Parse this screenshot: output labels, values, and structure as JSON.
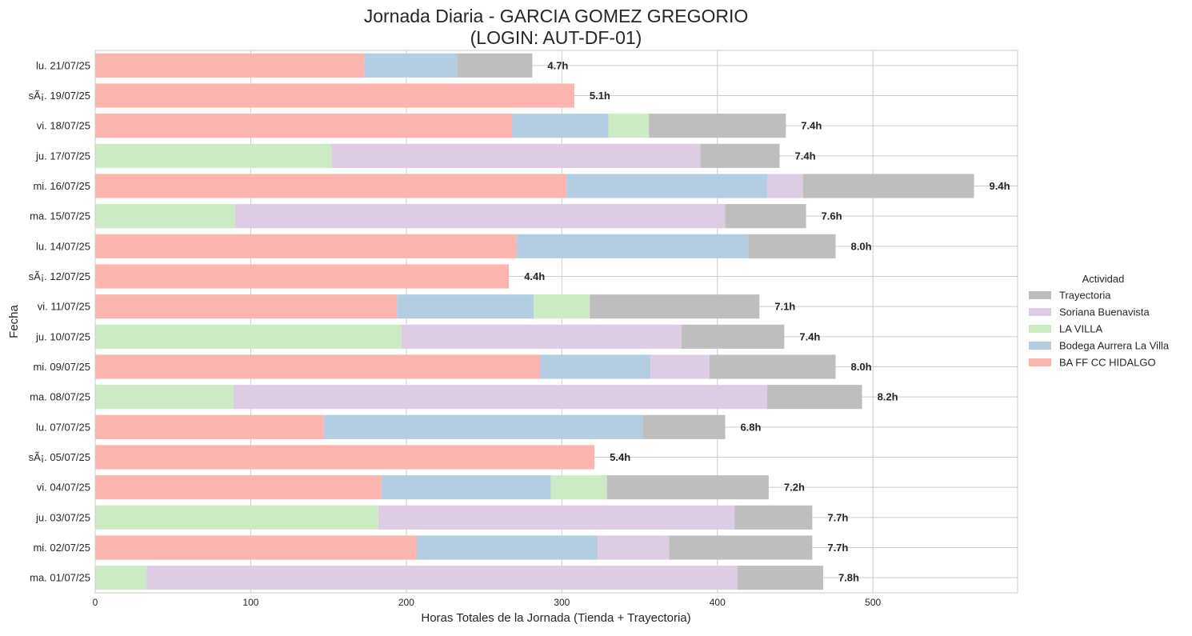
{
  "chart_data": {
    "type": "bar",
    "orientation": "horizontal",
    "stacked": true,
    "title": "Jornada Diaria - GARCIA GOMEZ GREGORIO",
    "subtitle": "(LOGIN: AUT-DF-01)",
    "xlabel": "Horas Totales de la Jornada (Tienda + Trayectoria)",
    "ylabel": "Fecha",
    "xlim": [
      0,
      593
    ],
    "xticks": [
      0,
      100,
      200,
      300,
      400,
      500
    ],
    "grid": true,
    "legend_title": "Actividad",
    "legend_position": "center-right",
    "categories": [
      "lu. 21/07/25",
      "sÃ¡. 19/07/25",
      "vi. 18/07/25",
      "ju. 17/07/25",
      "mi. 16/07/25",
      "ma. 15/07/25",
      "lu. 14/07/25",
      "sÃ¡. 12/07/25",
      "vi. 11/07/25",
      "ju. 10/07/25",
      "mi. 09/07/25",
      "ma. 08/07/25",
      "lu. 07/07/25",
      "sÃ¡. 05/07/25",
      "vi. 04/07/25",
      "ju. 03/07/25",
      "mi. 02/07/25",
      "ma. 01/07/25"
    ],
    "series": [
      {
        "name": "BA FF CC HIDALGO",
        "color": "#fbb4ae",
        "values": [
          173,
          308,
          268,
          0,
          303,
          0,
          271,
          266,
          194,
          0,
          286,
          0,
          147,
          321,
          184,
          0,
          207,
          0
        ]
      },
      {
        "name": "Bodega Aurrera  La Villa",
        "color": "#b3cde3",
        "values": [
          60,
          0,
          62,
          0,
          129,
          0,
          149,
          0,
          88,
          0,
          71,
          0,
          205,
          0,
          109,
          0,
          116,
          0
        ]
      },
      {
        "name": "LA VILLA",
        "color": "#ccebc5",
        "values": [
          0,
          0,
          26,
          152,
          0,
          90,
          0,
          0,
          36,
          197,
          0,
          89,
          0,
          0,
          36,
          182,
          0,
          33
        ]
      },
      {
        "name": "Soriana Buenavista",
        "color": "#decbe4",
        "values": [
          0,
          0,
          0,
          237,
          23,
          315,
          0,
          0,
          0,
          180,
          38,
          343,
          0,
          0,
          0,
          229,
          46,
          380
        ]
      },
      {
        "name": "Trayectoria",
        "color": "#bebebe",
        "values": [
          48,
          0,
          88,
          51,
          110,
          52,
          56,
          0,
          109,
          66,
          81,
          61,
          53,
          0,
          104,
          50,
          92,
          55
        ]
      }
    ],
    "legend_order": [
      "Trayectoria",
      "Soriana Buenavista",
      "LA VILLA",
      "Bodega Aurrera  La Villa",
      "BA FF CC HIDALGO"
    ],
    "totals_labels": [
      "4.7h",
      "5.1h",
      "7.4h",
      "7.4h",
      "9.4h",
      "7.6h",
      "8.0h",
      "4.4h",
      "7.1h",
      "7.4h",
      "8.0h",
      "8.2h",
      "6.8h",
      "5.4h",
      "7.2h",
      "7.7h",
      "7.7h",
      "7.8h"
    ]
  }
}
